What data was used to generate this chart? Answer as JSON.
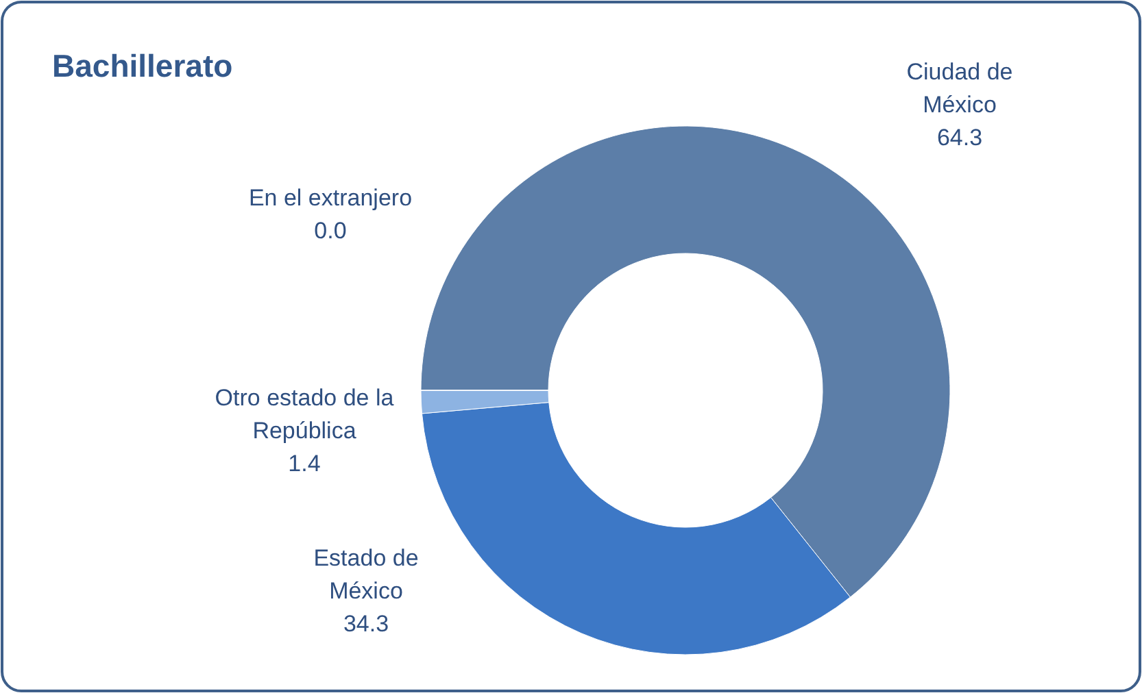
{
  "chart_data": {
    "type": "donut",
    "title": "Bachillerato",
    "categories": [
      "Ciudad de México",
      "Estado de México",
      "Otro estado de la República",
      "En el extranjero"
    ],
    "values": [
      64.3,
      34.3,
      1.4,
      0.0
    ],
    "colors": [
      "#5c7ea8",
      "#3d78c6",
      "#8db3e2",
      "#c6d9f1"
    ],
    "value_labels": [
      "64.3",
      "34.3",
      "1.4",
      "0.0"
    ]
  }
}
